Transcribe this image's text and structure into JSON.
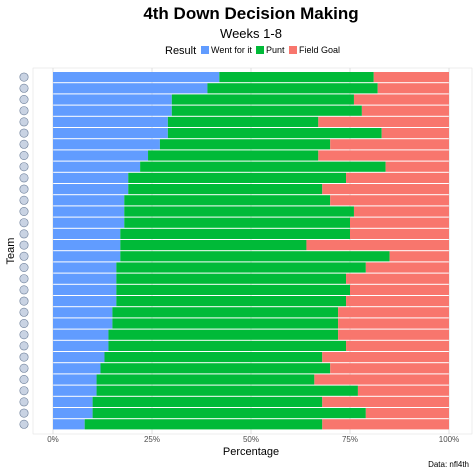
{
  "chart_data": {
    "type": "bar",
    "orientation": "horizontal",
    "stacked": true,
    "title": "4th Down Decision Making",
    "subtitle": "Weeks 1-8",
    "xlabel": "Percentage",
    "ylabel": "Team",
    "caption": "Data: nfl4th",
    "legend": {
      "title": "Result",
      "position": "top",
      "entries": [
        "Went for it",
        "Punt",
        "Field Goal"
      ]
    },
    "xlim": [
      0,
      1
    ],
    "x_ticks": [
      "0%",
      "25%",
      "50%",
      "75%",
      "100%"
    ],
    "grid": true,
    "colors": {
      "Went for it": "#619cff",
      "Punt": "#00ba38",
      "Field Goal": "#f8766d"
    },
    "teams": [
      {
        "icon": "colts-icon",
        "went": 0.42,
        "punt": 0.39,
        "fg": 0.19
      },
      {
        "icon": "cardinals-icon",
        "went": 0.39,
        "punt": 0.43,
        "fg": 0.18
      },
      {
        "icon": "chargers-icon",
        "went": 0.3,
        "punt": 0.46,
        "fg": 0.24
      },
      {
        "icon": "jaguars-icon",
        "went": 0.3,
        "punt": 0.48,
        "fg": 0.22
      },
      {
        "icon": "bills-icon",
        "went": 0.29,
        "punt": 0.38,
        "fg": 0.33
      },
      {
        "icon": "eagles-icon",
        "went": 0.29,
        "punt": 0.54,
        "fg": 0.17
      },
      {
        "icon": "broncos-icon",
        "went": 0.27,
        "punt": 0.43,
        "fg": 0.3
      },
      {
        "icon": "raiders-icon",
        "went": 0.24,
        "punt": 0.43,
        "fg": 0.33
      },
      {
        "icon": "packers-icon",
        "went": 0.22,
        "punt": 0.62,
        "fg": 0.16
      },
      {
        "icon": "dolphins-icon",
        "went": 0.19,
        "punt": 0.55,
        "fg": 0.26
      },
      {
        "icon": "jets-icon",
        "went": 0.19,
        "punt": 0.49,
        "fg": 0.32
      },
      {
        "icon": "bears-icon",
        "went": 0.18,
        "punt": 0.52,
        "fg": 0.3
      },
      {
        "icon": "panthers-icon",
        "went": 0.18,
        "punt": 0.58,
        "fg": 0.24
      },
      {
        "icon": "titans-icon",
        "went": 0.18,
        "punt": 0.57,
        "fg": 0.25
      },
      {
        "icon": "seahawks-icon",
        "went": 0.17,
        "punt": 0.58,
        "fg": 0.25
      },
      {
        "icon": "commanders-icon",
        "went": 0.17,
        "punt": 0.47,
        "fg": 0.36
      },
      {
        "icon": "ravens-icon",
        "went": 0.17,
        "punt": 0.68,
        "fg": 0.15
      },
      {
        "icon": "rams-icon",
        "went": 0.16,
        "punt": 0.63,
        "fg": 0.21
      },
      {
        "icon": "bengals-icon",
        "went": 0.16,
        "punt": 0.58,
        "fg": 0.26
      },
      {
        "icon": "browns-icon",
        "went": 0.16,
        "punt": 0.59,
        "fg": 0.25
      },
      {
        "icon": "texans-icon",
        "went": 0.16,
        "punt": 0.58,
        "fg": 0.26
      },
      {
        "icon": "broncos-icon",
        "went": 0.15,
        "punt": 0.57,
        "fg": 0.28
      },
      {
        "icon": "49ers-icon",
        "went": 0.15,
        "punt": 0.57,
        "fg": 0.28
      },
      {
        "icon": "chiefs-icon",
        "went": 0.14,
        "punt": 0.58,
        "fg": 0.28
      },
      {
        "icon": "cowboys-icon",
        "went": 0.14,
        "punt": 0.6,
        "fg": 0.26
      },
      {
        "icon": "patriots-icon",
        "went": 0.13,
        "punt": 0.55,
        "fg": 0.32
      },
      {
        "icon": "giants-icon",
        "went": 0.12,
        "punt": 0.58,
        "fg": 0.3
      },
      {
        "icon": "steelers-icon",
        "went": 0.11,
        "punt": 0.55,
        "fg": 0.34
      },
      {
        "icon": "rams-icon",
        "went": 0.11,
        "punt": 0.66,
        "fg": 0.23
      },
      {
        "icon": "saints-icon",
        "went": 0.1,
        "punt": 0.58,
        "fg": 0.32
      },
      {
        "icon": "titans-icon",
        "went": 0.1,
        "punt": 0.69,
        "fg": 0.21
      },
      {
        "icon": "falcons-icon",
        "went": 0.08,
        "punt": 0.6,
        "fg": 0.32
      }
    ]
  }
}
